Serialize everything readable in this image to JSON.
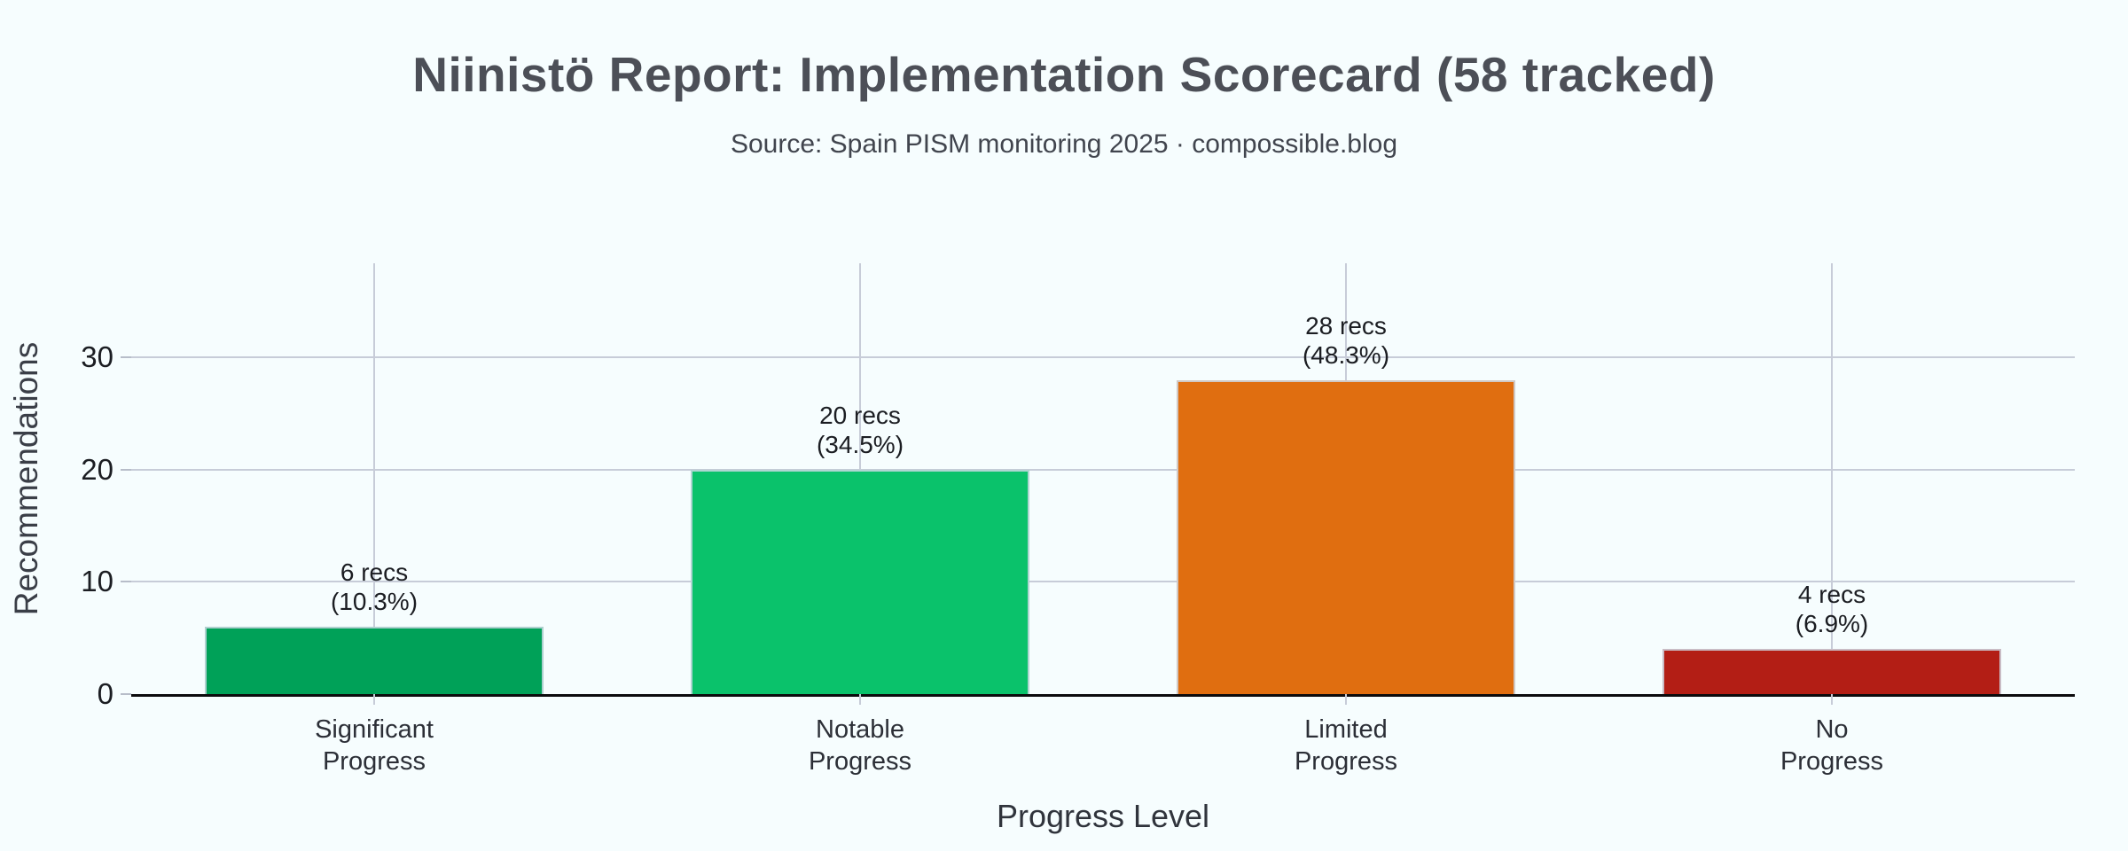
{
  "chart_data": {
    "type": "bar",
    "title": "Niinistö Report: Implementation Scorecard (58 tracked)",
    "subtitle": "Source: Spain PISM monitoring 2025 · compossible.blog",
    "xlabel": "Progress Level",
    "ylabel": "Recommendations",
    "categories": [
      "Significant Progress",
      "Notable Progress",
      "Limited Progress",
      "No Progress"
    ],
    "values": [
      6,
      20,
      28,
      4
    ],
    "bars": [
      {
        "category": "Significant Progress",
        "value": 6,
        "label": "6 recs",
        "sublabel": "(10.3%)",
        "color": "#00a158"
      },
      {
        "category": "Notable Progress",
        "value": 20,
        "label": "20 recs",
        "sublabel": "(34.5%)",
        "color": "#0ac26b"
      },
      {
        "category": "Limited Progress",
        "value": 28,
        "label": "28 recs",
        "sublabel": "(48.3%)",
        "color": "#e06e10"
      },
      {
        "category": "No Progress",
        "value": 4,
        "label": "4 recs",
        "sublabel": "(6.9%)",
        "color": "#b31e15"
      }
    ],
    "yticks": [
      0,
      10,
      20,
      30
    ],
    "ylim": [
      0,
      38.4
    ],
    "grid": true,
    "legend": false,
    "background_color": "#f6fdfe",
    "gridline_color": "#c7ccd8",
    "axis_color": "#0b0b0d"
  }
}
